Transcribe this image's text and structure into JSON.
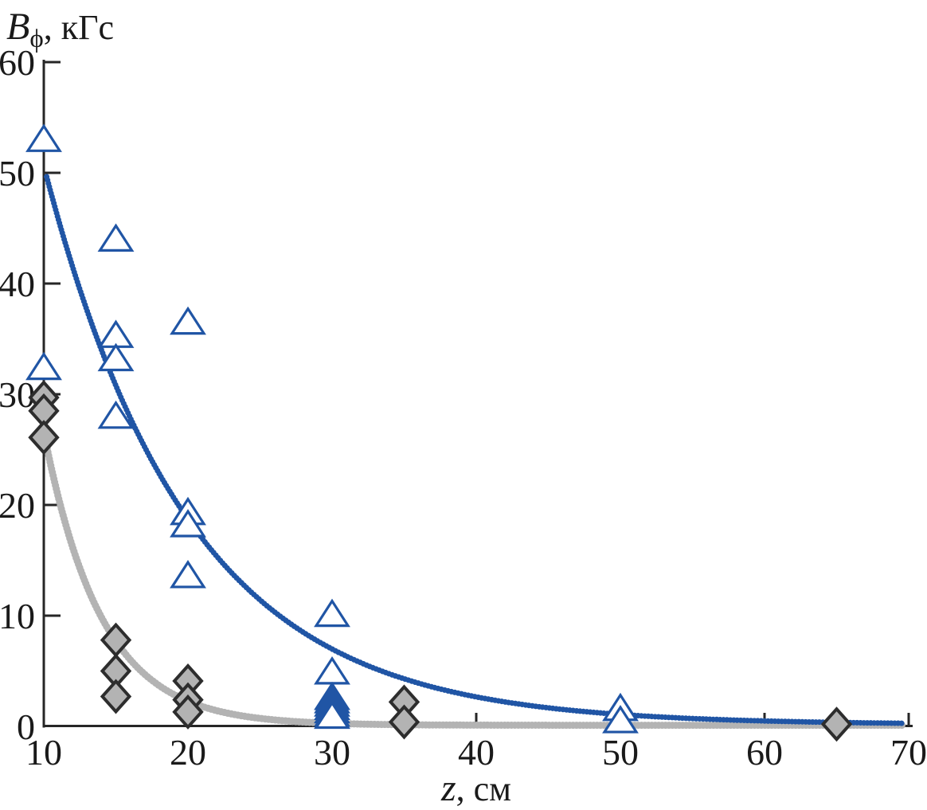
{
  "figure": {
    "y_axis_title": {
      "variable": "B",
      "subscript": "ϕ",
      "unit": ", кГс"
    },
    "x_axis_title": {
      "variable": "z",
      "unit": ", см"
    }
  },
  "chart_data": {
    "type": "scatter",
    "title": "",
    "xlabel": "z, см",
    "ylabel": "Bϕ, кГс",
    "xlim": [
      10,
      70
    ],
    "ylim": [
      0,
      60
    ],
    "grid": false,
    "legend": "none",
    "x_ticks": [
      {
        "v": 10,
        "label": "10"
      },
      {
        "v": 20,
        "label": "20"
      },
      {
        "v": 30,
        "label": "30"
      },
      {
        "v": 40,
        "label": "40"
      },
      {
        "v": 50,
        "label": "50"
      },
      {
        "v": 60,
        "label": "60"
      },
      {
        "v": 70,
        "label": "70"
      }
    ],
    "y_ticks": [
      {
        "v": 0,
        "label": "0"
      },
      {
        "v": 10,
        "label": "10"
      },
      {
        "v": 20,
        "label": "20"
      },
      {
        "v": 30,
        "label": "30"
      },
      {
        "v": 40,
        "label": "40"
      },
      {
        "v": 50,
        "label": "50"
      },
      {
        "v": 60,
        "label": "60"
      }
    ],
    "series": [
      {
        "name": "open-triangle-points",
        "marker": "triangle",
        "stroke": "#2055a5",
        "fill": "#ffffff",
        "points": [
          [
            10,
            53.0
          ],
          [
            10,
            32.4
          ],
          [
            15,
            44.0
          ],
          [
            15,
            35.3
          ],
          [
            15,
            33.2
          ],
          [
            15,
            28.0
          ],
          [
            20,
            36.5
          ],
          [
            20,
            19.3
          ],
          [
            20,
            18.2
          ],
          [
            20,
            13.6
          ],
          [
            30,
            10.1
          ],
          [
            30,
            4.9
          ],
          [
            30,
            2.6
          ],
          [
            30,
            2.3
          ],
          [
            30,
            2.0
          ],
          [
            30,
            1.7
          ],
          [
            30,
            1.4
          ],
          [
            30,
            1.1
          ],
          [
            30,
            0.9
          ],
          [
            50,
            1.6
          ],
          [
            50,
            0.5
          ]
        ]
      },
      {
        "name": "gray-diamond-points",
        "marker": "diamond",
        "stroke": "#2d2d2d",
        "fill": "#b3b3b3",
        "points": [
          [
            10,
            29.7
          ],
          [
            10,
            28.5
          ],
          [
            10,
            26.1
          ],
          [
            15,
            7.8
          ],
          [
            15,
            5.0
          ],
          [
            15,
            2.7
          ],
          [
            20,
            4.1
          ],
          [
            20,
            2.4
          ],
          [
            20,
            1.3
          ],
          [
            35,
            2.2
          ],
          [
            35,
            0.4
          ],
          [
            65,
            0.2
          ]
        ]
      }
    ],
    "curves": [
      {
        "name": "gray-fit-curve",
        "color": "#b3b3b3",
        "model": "A*exp(-(z-z0)/lambda)+floor",
        "A": 26.5,
        "z0": 10,
        "lambda": 4.0,
        "floor": 0.1,
        "z_start": 10.0,
        "z_end": 69.8,
        "width": 9
      },
      {
        "name": "blue-fit-curve",
        "color": "#2055a5",
        "model": "A*exp(-(z-z0)/lambda)+floor",
        "A": 50.5,
        "z0": 10,
        "lambda": 10.0,
        "floor": 0.15,
        "z_start": 10.2,
        "z_end": 69.8,
        "width": 7
      }
    ],
    "colors": {
      "accent_blue": "#2055a5",
      "gray": "#b3b3b3",
      "axis": "#262626"
    }
  }
}
